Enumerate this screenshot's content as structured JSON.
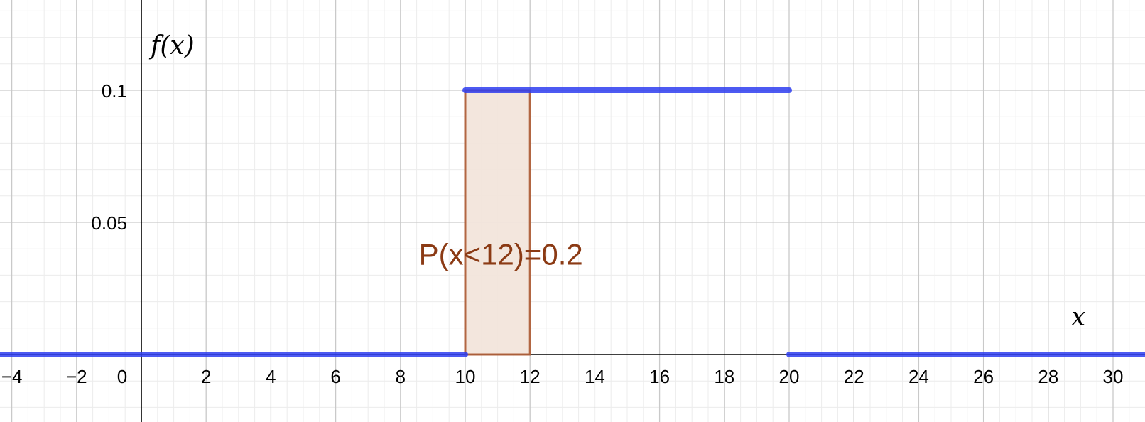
{
  "chart_data": {
    "type": "line",
    "xlabel": "x",
    "ylabel": "f(x)",
    "xlim": [
      -4.4,
      31
    ],
    "ylim": [
      -0.025,
      0.135
    ],
    "grid": true,
    "x_ticks": [
      {
        "value": -4,
        "label": "−4"
      },
      {
        "value": -2,
        "label": "−2"
      },
      {
        "value": 2,
        "label": "2"
      },
      {
        "value": 4,
        "label": "4"
      },
      {
        "value": 6,
        "label": "6"
      },
      {
        "value": 8,
        "label": "8"
      },
      {
        "value": 10,
        "label": "10"
      },
      {
        "value": 12,
        "label": "12"
      },
      {
        "value": 14,
        "label": "14"
      },
      {
        "value": 16,
        "label": "16"
      },
      {
        "value": 18,
        "label": "18"
      },
      {
        "value": 20,
        "label": "20"
      },
      {
        "value": 22,
        "label": "22"
      },
      {
        "value": 24,
        "label": "24"
      },
      {
        "value": 26,
        "label": "26"
      },
      {
        "value": 28,
        "label": "28"
      },
      {
        "value": 30,
        "label": "30"
      }
    ],
    "origin_label": "0",
    "y_ticks": [
      {
        "value": 0.05,
        "label": "0.05"
      },
      {
        "value": 0.1,
        "label": "0.1"
      }
    ],
    "series": [
      {
        "color": "#2f3ef0",
        "segments": [
          {
            "x": [
              -4.4,
              10
            ],
            "y": [
              0,
              0
            ]
          },
          {
            "x": [
              10,
              20
            ],
            "y": [
              0.1,
              0.1
            ]
          },
          {
            "x": [
              20,
              31
            ],
            "y": [
              0,
              0
            ]
          }
        ]
      }
    ],
    "shaded_region": {
      "x_from": 10,
      "x_to": 12,
      "y": 0.1,
      "fill": "#f3e5dc",
      "stroke": "#b0603a"
    },
    "annotation": {
      "text": "P(x<12)=0.2",
      "x": 11.1,
      "y": 0.034,
      "color": "#8b3a14"
    }
  }
}
